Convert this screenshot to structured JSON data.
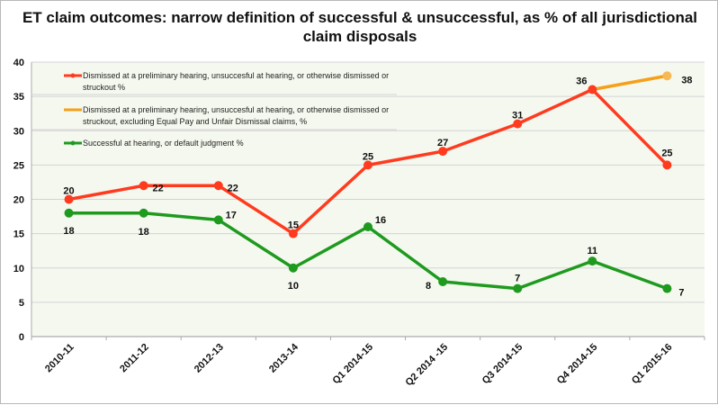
{
  "chart_data": {
    "type": "line",
    "title": "ET claim outcomes: narrow definition of successful & unsuccessful, as % of all jurisdictional claim disposals",
    "categories": [
      "2010-11",
      "2011-12",
      "2012-13",
      "2013-14",
      "Q1 2014-15",
      "Q2 2014 -15",
      "Q3 2014-15",
      "Q4 2014-15",
      "Q1 2015-16"
    ],
    "ylim": [
      0,
      40
    ],
    "yticks": [
      0,
      5,
      10,
      15,
      20,
      25,
      30,
      35,
      40
    ],
    "grid": true,
    "legend_position": "top-left",
    "series": [
      {
        "name": "Dismissed at a preliminary hearing, unsuccesful at hearing, or otherwise dismissed or struckout %",
        "color": "#ff3b1f",
        "values": [
          20,
          22,
          22,
          15,
          25,
          27,
          31,
          36,
          25
        ]
      },
      {
        "name": "Dismissed at a preliminary hearing, unsuccesful at hearing, or otherwise dismissed or struckout, excluding Equal Pay and Unfair Dismissal claims, %",
        "color": "#f5a01a",
        "values": [
          null,
          null,
          null,
          null,
          null,
          null,
          null,
          36,
          38
        ]
      },
      {
        "name": "Successful at hearing, or default judgment %",
        "color": "#1e9a1e",
        "values": [
          18,
          18,
          17,
          10,
          16,
          8,
          7,
          11,
          7
        ]
      }
    ]
  }
}
